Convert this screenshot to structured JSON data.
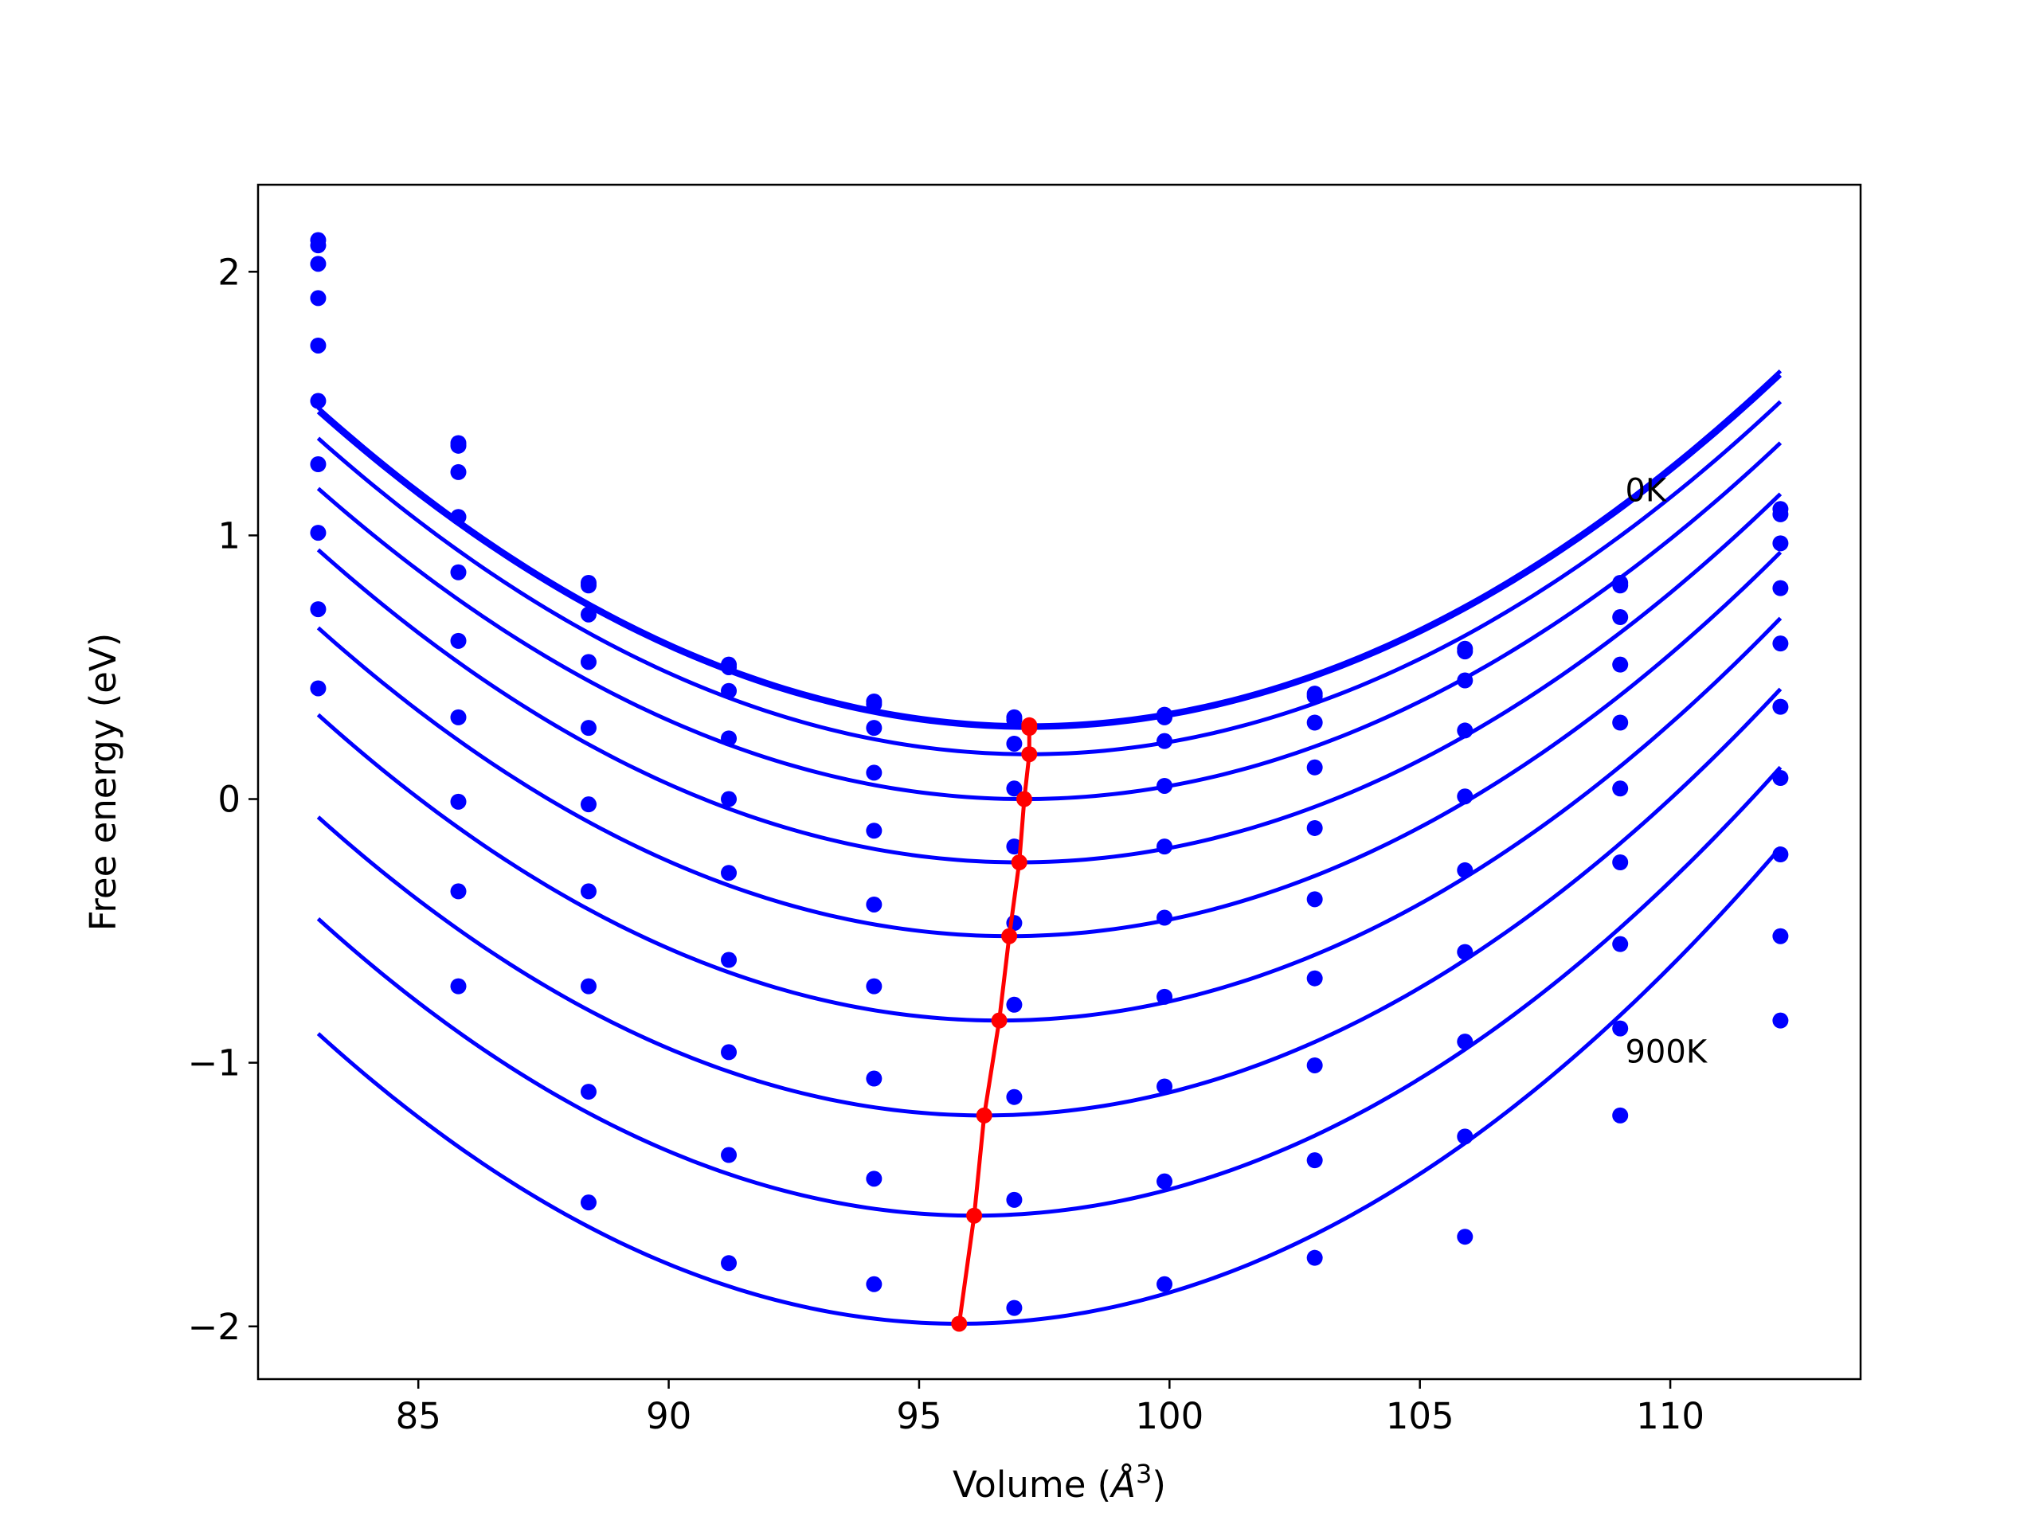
{
  "chart_data": {
    "type": "line",
    "title": "",
    "xlabel_main": "Volume (",
    "xlabel_math_base": "Å",
    "xlabel_math_exp": "3",
    "xlabel_tail": ")",
    "ylabel": "Free energy (eV)",
    "xlim": [
      81.8,
      113.8
    ],
    "ylim": [
      -2.2,
      2.33
    ],
    "x_ticks": [
      85,
      90,
      95,
      100,
      105,
      110
    ],
    "y_ticks": [
      -2,
      -1,
      0,
      1,
      2
    ],
    "x_tick_labels": [
      "85",
      "90",
      "95",
      "100",
      "105",
      "110"
    ],
    "y_tick_labels": [
      "−2",
      "−1",
      "0",
      "1",
      "2"
    ],
    "grid": false,
    "annotations": [
      {
        "text": "0K",
        "x": 109.1,
        "y": 1.13
      },
      {
        "text": "900K",
        "x": 109.1,
        "y": -1.0
      }
    ],
    "point_color": "#0000ff",
    "fit_color": "#0000ff",
    "min_color": "#ff0000",
    "x": [
      83.0,
      85.8,
      88.4,
      91.2,
      94.1,
      96.9,
      99.9,
      102.9,
      105.9,
      109.0,
      112.2
    ],
    "series": [
      {
        "values": [
          2.12,
          1.35,
          0.82,
          0.51,
          0.37,
          0.31,
          0.32,
          0.4,
          0.57,
          0.82,
          1.1
        ],
        "fit_min": {
          "x": 97.2,
          "y": 0.28
        }
      },
      {
        "values": [
          2.1,
          1.34,
          0.81,
          0.5,
          0.36,
          0.3,
          0.31,
          0.39,
          0.56,
          0.81,
          1.08
        ],
        "fit_min": {
          "x": 97.2,
          "y": 0.27
        }
      },
      {
        "values": [
          2.03,
          1.24,
          0.7,
          0.41,
          0.27,
          0.21,
          0.22,
          0.29,
          0.45,
          0.69,
          0.97
        ],
        "fit_min": {
          "x": 97.2,
          "y": 0.17
        }
      },
      {
        "values": [
          1.9,
          1.07,
          0.52,
          0.23,
          0.1,
          0.04,
          0.05,
          0.12,
          0.26,
          0.51,
          0.8
        ],
        "fit_min": {
          "x": 97.1,
          "y": 0.0
        }
      },
      {
        "values": [
          1.72,
          0.86,
          0.27,
          0.0,
          -0.12,
          -0.18,
          -0.18,
          -0.11,
          0.01,
          0.29,
          0.59
        ],
        "fit_min": {
          "x": 97.0,
          "y": -0.24
        }
      },
      {
        "values": [
          1.51,
          0.6,
          -0.02,
          -0.28,
          -0.4,
          -0.47,
          -0.45,
          -0.38,
          -0.27,
          0.04,
          0.35
        ],
        "fit_min": {
          "x": 96.8,
          "y": -0.52
        }
      },
      {
        "values": [
          1.27,
          0.31,
          -0.35,
          -0.61,
          -0.71,
          -0.78,
          -0.75,
          -0.68,
          -0.58,
          -0.24,
          0.08
        ],
        "fit_min": {
          "x": 96.6,
          "y": -0.84
        }
      },
      {
        "values": [
          1.01,
          -0.01,
          -0.71,
          -0.96,
          -1.06,
          -1.13,
          -1.09,
          -1.01,
          -0.92,
          -0.55,
          -0.21
        ],
        "fit_min": {
          "x": 96.3,
          "y": -1.2
        }
      },
      {
        "values": [
          0.72,
          -0.35,
          -1.11,
          -1.35,
          -1.44,
          -1.52,
          -1.45,
          -1.37,
          -1.28,
          -0.87,
          -0.52
        ],
        "fit_min": {
          "x": 96.1,
          "y": -1.58
        }
      },
      {
        "values": [
          0.42,
          -0.71,
          -1.53,
          -1.76,
          -1.84,
          -1.93,
          -1.84,
          -1.74,
          -1.66,
          -1.2,
          -0.84
        ],
        "fit_min": {
          "x": 95.8,
          "y": -1.99
        }
      }
    ]
  }
}
